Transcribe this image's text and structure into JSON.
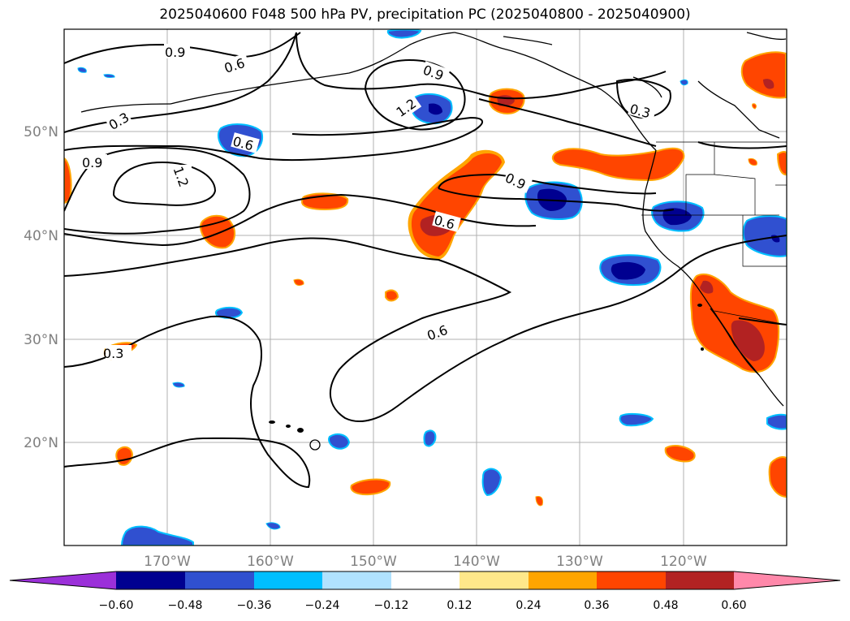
{
  "title": "2025040600 F048 500 hPa PV, precipitation PC (2025040800 - 2025040900)",
  "lat_labels": [
    "50°N",
    "40°N",
    "30°N",
    "20°N"
  ],
  "lon_labels": [
    "170°W",
    "160°W",
    "150°W",
    "140°W",
    "130°W",
    "120°W"
  ],
  "contour_labels": [
    "0.9",
    "0.6",
    "0.3",
    "0.9",
    "1.2",
    "0.9",
    "0.6",
    "1.2",
    "0.6",
    "0.9",
    "0.6",
    "0.3",
    "0.3"
  ],
  "colorbar": {
    "ticks": [
      "−0.60",
      "−0.48",
      "−0.36",
      "−0.24",
      "−0.12",
      "0.12",
      "0.24",
      "0.36",
      "0.48",
      "0.60"
    ],
    "colors": [
      "#9b30d9",
      "#000090",
      "#3050d0",
      "#00bfff",
      "#b0e2ff",
      "#ffffff",
      "#ffe88a",
      "#ffa500",
      "#ff4500",
      "#b22222",
      "#ff88aa"
    ]
  }
}
